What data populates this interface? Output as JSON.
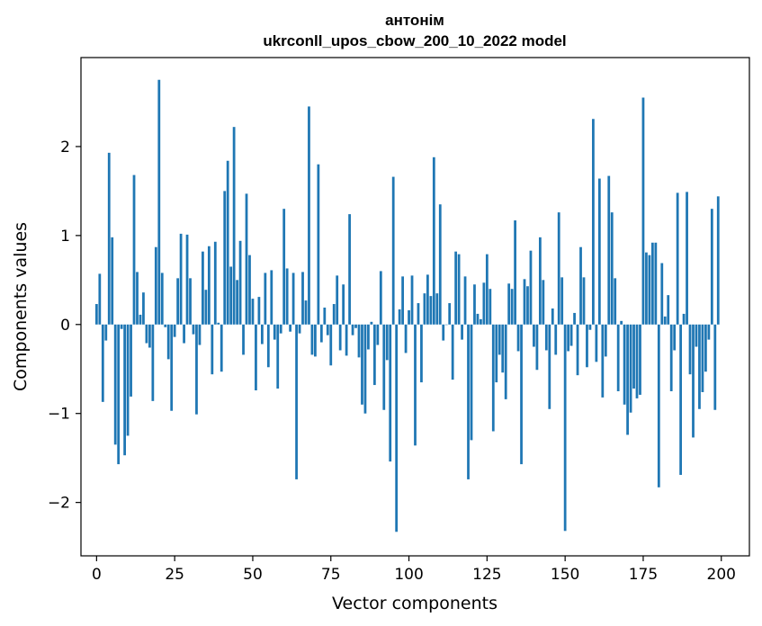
{
  "chart_data": {
    "type": "bar",
    "title": "антонім",
    "subtitle": "ukrconll_upos_cbow_200_10_2022 model",
    "xlabel": "Vector components",
    "ylabel": "Components values",
    "xlim": [
      -5,
      209
    ],
    "ylim": [
      -2.6,
      3.0
    ],
    "xticks": [
      0,
      25,
      50,
      75,
      100,
      125,
      150,
      175,
      200
    ],
    "xtick_labels": [
      "0",
      "25",
      "50",
      "75",
      "100",
      "125",
      "150",
      "175",
      "200"
    ],
    "yticks": [
      -2,
      -1,
      0,
      1,
      2
    ],
    "ytick_labels": [
      "−2",
      "−1",
      "0",
      "1",
      "2"
    ],
    "grid": false,
    "bar_color": "#1f77b4",
    "x": [
      0,
      1,
      2,
      3,
      4,
      5,
      6,
      7,
      8,
      9,
      10,
      11,
      12,
      13,
      14,
      15,
      16,
      17,
      18,
      19,
      20,
      21,
      22,
      23,
      24,
      25,
      26,
      27,
      28,
      29,
      30,
      31,
      32,
      33,
      34,
      35,
      36,
      37,
      38,
      39,
      40,
      41,
      42,
      43,
      44,
      45,
      46,
      47,
      48,
      49,
      50,
      51,
      52,
      53,
      54,
      55,
      56,
      57,
      58,
      59,
      60,
      61,
      62,
      63,
      64,
      65,
      66,
      67,
      68,
      69,
      70,
      71,
      72,
      73,
      74,
      75,
      76,
      77,
      78,
      79,
      80,
      81,
      82,
      83,
      84,
      85,
      86,
      87,
      88,
      89,
      90,
      91,
      92,
      93,
      94,
      95,
      96,
      97,
      98,
      99,
      100,
      101,
      102,
      103,
      104,
      105,
      106,
      107,
      108,
      109,
      110,
      111,
      112,
      113,
      114,
      115,
      116,
      117,
      118,
      119,
      120,
      121,
      122,
      123,
      124,
      125,
      126,
      127,
      128,
      129,
      130,
      131,
      132,
      133,
      134,
      135,
      136,
      137,
      138,
      139,
      140,
      141,
      142,
      143,
      144,
      145,
      146,
      147,
      148,
      149,
      150,
      151,
      152,
      153,
      154,
      155,
      156,
      157,
      158,
      159,
      160,
      161,
      162,
      163,
      164,
      165,
      166,
      167,
      168,
      169,
      170,
      171,
      172,
      173,
      174,
      175,
      176,
      177,
      178,
      179,
      180,
      181,
      182,
      183,
      184,
      185,
      186,
      187,
      188,
      189,
      190,
      191,
      192,
      193,
      194,
      195,
      196,
      197,
      198,
      199
    ],
    "values": [
      0.23,
      0.57,
      -0.87,
      -0.18,
      1.93,
      0.98,
      -1.35,
      -1.57,
      -0.05,
      -1.47,
      -1.25,
      -0.81,
      1.68,
      0.59,
      0.11,
      0.36,
      -0.21,
      -0.26,
      -0.86,
      0.87,
      2.75,
      0.58,
      -0.03,
      -0.39,
      -0.97,
      -0.14,
      0.52,
      1.02,
      -0.21,
      1.01,
      0.52,
      -0.11,
      -1.01,
      -0.23,
      0.82,
      0.39,
      0.88,
      -0.56,
      0.93,
      0.02,
      -0.53,
      1.5,
      1.84,
      0.65,
      2.22,
      0.5,
      0.94,
      -0.34,
      1.47,
      0.78,
      0.29,
      -0.74,
      0.31,
      -0.22,
      0.58,
      -0.48,
      0.61,
      -0.17,
      -0.72,
      -0.1,
      1.3,
      0.63,
      -0.08,
      0.58,
      -1.74,
      -0.1,
      0.59,
      0.27,
      2.45,
      -0.34,
      -0.36,
      1.8,
      -0.2,
      0.19,
      -0.12,
      -0.46,
      0.23,
      0.55,
      -0.29,
      0.45,
      -0.35,
      1.24,
      -0.12,
      -0.04,
      -0.37,
      -0.9,
      -1.0,
      -0.28,
      0.03,
      -0.68,
      -0.23,
      0.6,
      -0.96,
      -0.4,
      -1.54,
      1.66,
      -2.33,
      0.17,
      0.54,
      -0.32,
      0.16,
      0.55,
      -1.36,
      0.24,
      -0.65,
      0.35,
      0.56,
      0.32,
      1.88,
      0.35,
      1.35,
      -0.18,
      0.0,
      0.24,
      -0.62,
      0.82,
      0.79,
      -0.17,
      0.54,
      -1.74,
      -1.3,
      0.45,
      0.12,
      0.06,
      0.47,
      0.79,
      0.4,
      -1.2,
      -0.65,
      -0.34,
      -0.54,
      -0.84,
      0.46,
      0.4,
      1.17,
      -0.3,
      -1.57,
      0.51,
      0.43,
      0.83,
      -0.25,
      -0.51,
      0.98,
      0.5,
      -0.29,
      -0.95,
      0.18,
      -0.34,
      1.26,
      0.53,
      -2.32,
      -0.3,
      -0.24,
      0.13,
      -0.57,
      0.87,
      0.53,
      -0.48,
      -0.06,
      2.31,
      -0.42,
      1.64,
      -0.82,
      -0.36,
      1.67,
      1.26,
      0.52,
      -0.75,
      0.04,
      -0.9,
      -1.24,
      -0.99,
      -0.72,
      -0.83,
      -0.79,
      2.55,
      0.81,
      0.78,
      0.92,
      0.92,
      -1.83,
      0.69,
      0.09,
      0.33,
      -0.75,
      -0.29,
      1.48,
      -1.69,
      0.12,
      1.49,
      -0.56,
      -1.27,
      -0.25,
      -0.95,
      -0.76,
      -0.53,
      -0.17,
      1.3,
      -0.96,
      1.44
    ]
  }
}
